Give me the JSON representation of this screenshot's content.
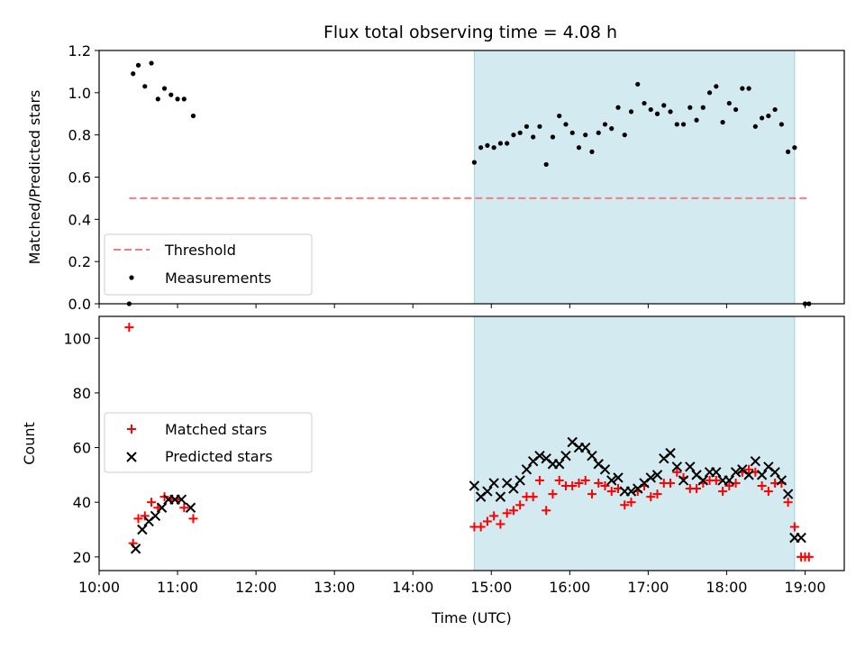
{
  "chart_data": [
    {
      "type": "scatter",
      "title": "Flux total observing time = 4.08 h",
      "xlabel": "",
      "ylabel": "Matched/Predicted stars",
      "xlim": [
        "10:00",
        "19:30"
      ],
      "ylim": [
        0.0,
        1.2
      ],
      "yticks": [
        "0.0",
        "0.2",
        "0.4",
        "0.6",
        "0.8",
        "1.0",
        "1.2"
      ],
      "shaded_region": {
        "x_start": "14:47",
        "x_end": "18:52",
        "color": "#d3eaf1"
      },
      "legend": {
        "placement": "lower-left",
        "entries": [
          "Threshold",
          "Measurements"
        ]
      },
      "series": [
        {
          "name": "Threshold",
          "kind": "line",
          "style": "dashed",
          "color": "#f08080",
          "x": [
            "10:23",
            "19:03"
          ],
          "y": [
            0.5,
            0.5
          ]
        },
        {
          "name": "Measurements",
          "kind": "scatter",
          "color": "#000000",
          "x": [
            "10:23",
            "10:26",
            "10:30",
            "10:35",
            "10:40",
            "10:45",
            "10:50",
            "10:55",
            "11:00",
            "11:05",
            "11:12",
            "14:47",
            "14:52",
            "14:57",
            "15:02",
            "15:07",
            "15:12",
            "15:17",
            "15:22",
            "15:27",
            "15:32",
            "15:37",
            "15:42",
            "15:47",
            "15:52",
            "15:57",
            "16:02",
            "16:07",
            "16:12",
            "16:17",
            "16:22",
            "16:27",
            "16:32",
            "16:37",
            "16:42",
            "16:47",
            "16:52",
            "16:57",
            "17:02",
            "17:07",
            "17:12",
            "17:17",
            "17:22",
            "17:27",
            "17:32",
            "17:37",
            "17:42",
            "17:47",
            "17:52",
            "17:57",
            "18:02",
            "18:07",
            "18:12",
            "18:17",
            "18:22",
            "18:27",
            "18:32",
            "18:37",
            "18:42",
            "18:47",
            "18:52",
            "19:00",
            "19:03"
          ],
          "y": [
            0.0,
            1.09,
            1.13,
            1.03,
            1.14,
            0.97,
            1.02,
            0.99,
            0.97,
            0.97,
            0.89,
            0.67,
            0.74,
            0.75,
            0.74,
            0.76,
            0.76,
            0.8,
            0.81,
            0.84,
            0.79,
            0.84,
            0.66,
            0.79,
            0.89,
            0.85,
            0.81,
            0.74,
            0.8,
            0.72,
            0.81,
            0.85,
            0.83,
            0.93,
            0.8,
            0.91,
            1.04,
            0.95,
            0.92,
            0.9,
            0.94,
            0.91,
            0.85,
            0.85,
            0.93,
            0.87,
            0.93,
            1.0,
            1.03,
            0.86,
            0.95,
            0.92,
            1.02,
            1.02,
            0.84,
            0.88,
            0.89,
            0.92,
            0.85,
            0.72,
            0.74,
            0.0,
            0.0
          ]
        }
      ]
    },
    {
      "type": "scatter",
      "title": "",
      "xlabel": "Time (UTC)",
      "ylabel": "Count",
      "xlim": [
        "10:00",
        "19:30"
      ],
      "ylim": [
        15,
        108
      ],
      "yticks": [
        "20",
        "40",
        "60",
        "80",
        "100"
      ],
      "xticks": [
        "10:00",
        "11:00",
        "12:00",
        "13:00",
        "14:00",
        "15:00",
        "16:00",
        "17:00",
        "18:00",
        "19:00"
      ],
      "shaded_region": {
        "x_start": "14:47",
        "x_end": "18:52",
        "color": "#d3eaf1"
      },
      "legend": {
        "placement": "center-left",
        "entries": [
          "Matched stars",
          "Predicted stars"
        ]
      },
      "series": [
        {
          "name": "Matched stars",
          "marker": "plus",
          "color": "#ff0000",
          "x": [
            "10:23",
            "10:26",
            "10:30",
            "10:35",
            "10:40",
            "10:45",
            "10:50",
            "10:55",
            "11:00",
            "11:05",
            "11:12",
            "14:47",
            "14:52",
            "14:57",
            "15:02",
            "15:07",
            "15:12",
            "15:17",
            "15:22",
            "15:27",
            "15:32",
            "15:37",
            "15:42",
            "15:47",
            "15:52",
            "15:57",
            "16:02",
            "16:07",
            "16:12",
            "16:17",
            "16:22",
            "16:27",
            "16:32",
            "16:37",
            "16:42",
            "16:47",
            "16:52",
            "16:57",
            "17:02",
            "17:07",
            "17:12",
            "17:17",
            "17:22",
            "17:27",
            "17:32",
            "17:37",
            "17:42",
            "17:47",
            "17:52",
            "17:57",
            "18:02",
            "18:07",
            "18:12",
            "18:17",
            "18:22",
            "18:27",
            "18:32",
            "18:37",
            "18:42",
            "18:47",
            "18:52",
            "18:57",
            "19:00",
            "19:03"
          ],
          "y": [
            104,
            25,
            34,
            35,
            40,
            38,
            42,
            41,
            41,
            38,
            34,
            31,
            31,
            33,
            35,
            32,
            36,
            37,
            39,
            42,
            42,
            48,
            37,
            43,
            48,
            46,
            46,
            47,
            48,
            43,
            47,
            46,
            44,
            45,
            39,
            40,
            44,
            46,
            42,
            43,
            47,
            47,
            51,
            49,
            45,
            45,
            47,
            48,
            48,
            44,
            46,
            47,
            51,
            52,
            51,
            46,
            44,
            47,
            47,
            40,
            31,
            20,
            20,
            20
          ]
        },
        {
          "name": "Predicted stars",
          "marker": "x",
          "color": "#000000",
          "x": [
            "10:28",
            "10:33",
            "10:38",
            "10:43",
            "10:48",
            "10:53",
            "10:58",
            "11:03",
            "11:10",
            "14:47",
            "14:52",
            "14:57",
            "15:02",
            "15:07",
            "15:12",
            "15:17",
            "15:22",
            "15:27",
            "15:32",
            "15:37",
            "15:42",
            "15:47",
            "15:52",
            "15:57",
            "16:02",
            "16:07",
            "16:12",
            "16:17",
            "16:22",
            "16:27",
            "16:32",
            "16:37",
            "16:42",
            "16:47",
            "16:52",
            "16:57",
            "17:02",
            "17:07",
            "17:12",
            "17:17",
            "17:22",
            "17:27",
            "17:32",
            "17:37",
            "17:42",
            "17:47",
            "17:52",
            "17:57",
            "18:02",
            "18:07",
            "18:12",
            "18:17",
            "18:22",
            "18:27",
            "18:32",
            "18:37",
            "18:42",
            "18:47",
            "18:52",
            "18:57"
          ],
          "y": [
            23,
            30,
            33,
            35,
            38,
            41,
            41,
            41,
            38,
            46,
            42,
            44,
            47,
            42,
            47,
            45,
            48,
            52,
            55,
            57,
            56,
            54,
            54,
            57,
            62,
            60,
            60,
            57,
            54,
            52,
            48,
            49,
            44,
            44,
            45,
            47,
            49,
            50,
            56,
            58,
            53,
            48,
            53,
            50,
            48,
            51,
            51,
            48,
            48,
            51,
            52,
            50,
            55,
            50,
            53,
            51,
            48,
            43,
            27,
            27
          ]
        }
      ]
    }
  ]
}
